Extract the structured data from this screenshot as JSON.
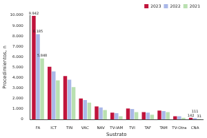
{
  "chart_data": {
    "type": "bar",
    "x_label": "Sustrato",
    "y_label": "Procedimientos, n",
    "categories": [
      "FA",
      "ICT",
      "TIN",
      "VAC",
      "NAV",
      "TV-IAM",
      "TVI",
      "TAF",
      "TAM",
      "TV-Otra",
      "CNA"
    ],
    "series": [
      {
        "name": "2023",
        "color": "#c0143c",
        "values": [
          9942,
          5050,
          4150,
          2000,
          1250,
          650,
          1050,
          700,
          850,
          300,
          142
        ],
        "value_labels": [
          "9.942",
          null,
          null,
          null,
          null,
          null,
          null,
          null,
          null,
          null,
          "142"
        ]
      },
      {
        "name": "2022",
        "color": "#aab8e8",
        "values": [
          8185,
          4600,
          3800,
          1850,
          1150,
          600,
          1000,
          650,
          800,
          300,
          111
        ],
        "value_labels": [
          "8.185",
          null,
          null,
          null,
          null,
          null,
          null,
          null,
          null,
          null,
          "111"
        ]
      },
      {
        "name": "2021",
        "color": "#b9e0b0",
        "values": [
          5848,
          3750,
          3100,
          1600,
          900,
          300,
          700,
          450,
          700,
          150,
          31
        ],
        "value_labels": [
          "5.848",
          null,
          null,
          null,
          null,
          null,
          null,
          null,
          null,
          null,
          "31"
        ]
      }
    ],
    "ylim": [
      0,
      10000
    ],
    "yticks": [
      0,
      {
        "value": 1000,
        "label": "1.000"
      },
      {
        "value": 2000,
        "label": "2.000"
      },
      {
        "value": 3000,
        "label": "3.000"
      },
      {
        "value": 4000,
        "label": "4.000"
      },
      {
        "value": 5000,
        "label": "5.000"
      },
      {
        "value": 6000,
        "label": "6.000"
      },
      {
        "value": 7000,
        "label": "7.000"
      },
      {
        "value": 8000,
        "label": "8.000"
      },
      {
        "value": 9000,
        "label": "9.000"
      },
      {
        "value": 10000,
        "label": "10.000"
      }
    ],
    "grid": false,
    "legend": "top-right",
    "data_labels": true
  }
}
